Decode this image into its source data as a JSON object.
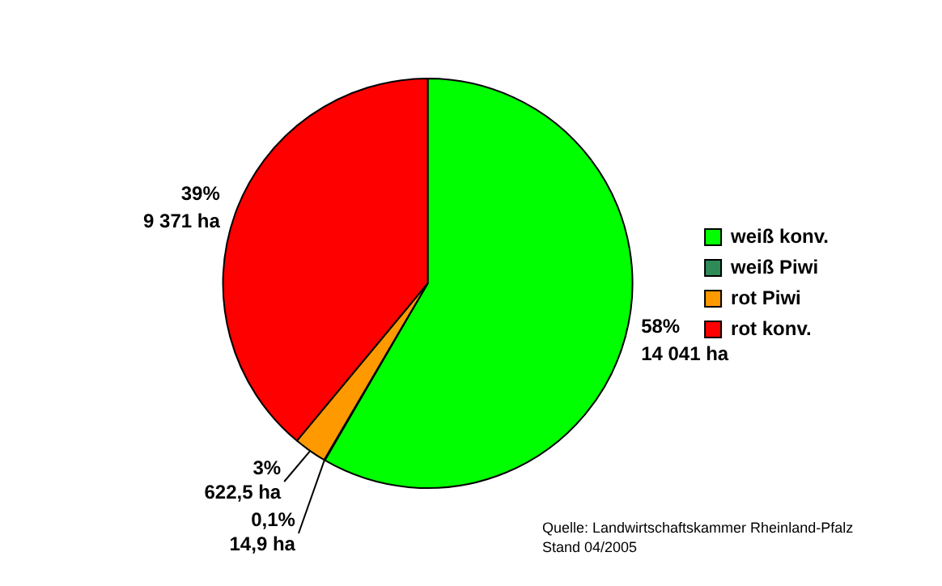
{
  "chart_data": {
    "type": "pie",
    "categories": [
      "weiß konv.",
      "weiß Piwi",
      "rot Piwi",
      "rot konv."
    ],
    "values": [
      14041,
      14.9,
      622.5,
      9371
    ],
    "colors": [
      "#00ff00",
      "#2e8b57",
      "#ff9900",
      "#ff0000"
    ],
    "value_labels": [
      "58%\n14 041 ha",
      "0,1%\n14,9 ha",
      "3%\n622,5 ha",
      "39%\n9 371 ha"
    ],
    "legend": "right",
    "annotations": [
      "Quelle: Landwirtschaftskammer Rheinland-Pfalz",
      "Stand 04/2005"
    ]
  }
}
